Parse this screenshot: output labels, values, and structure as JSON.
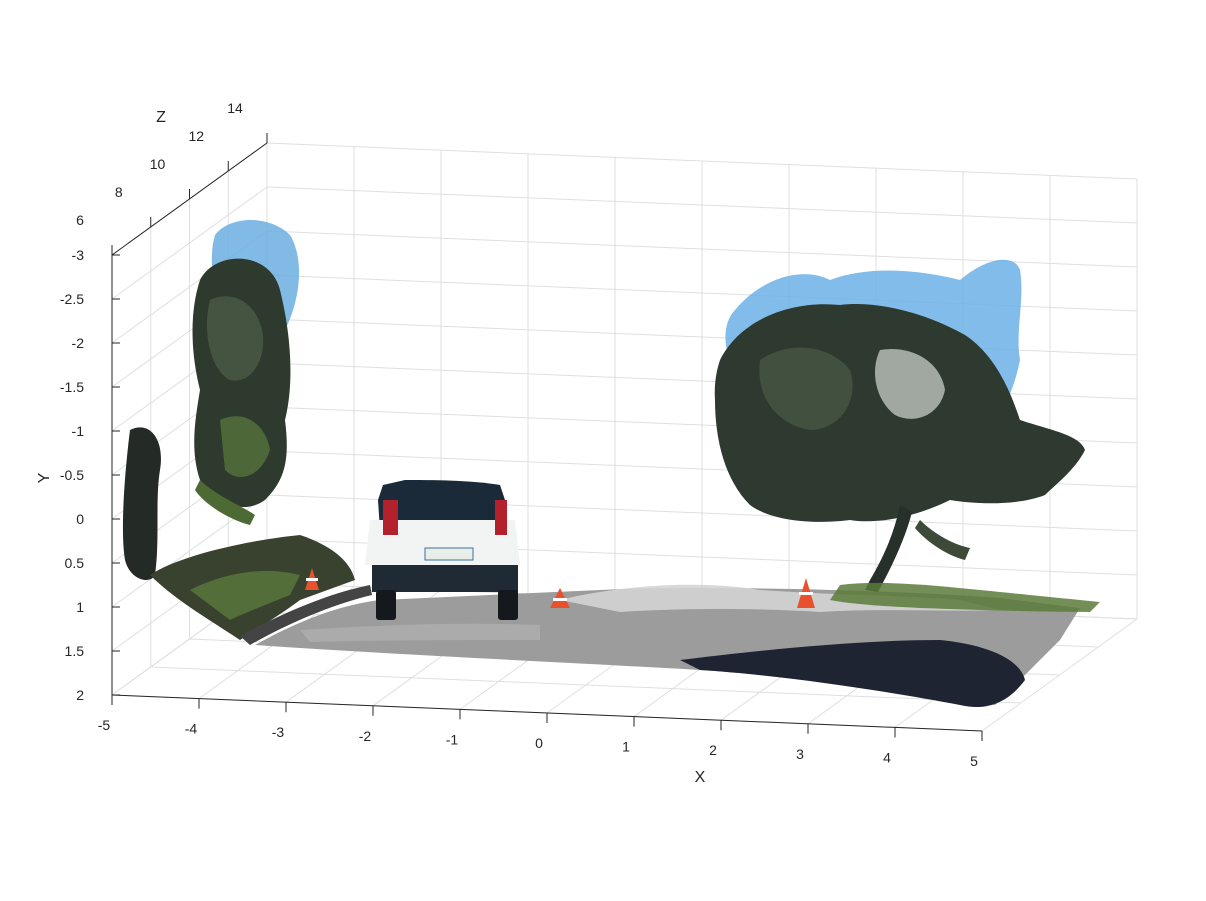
{
  "chart_data": {
    "type": "scatter3d",
    "title": "",
    "xlabel": "X",
    "ylabel": "Y",
    "zlabel": "Z",
    "xlim": [
      -5,
      5
    ],
    "ylim": [
      -3,
      2
    ],
    "zlim": [
      6,
      14
    ],
    "y_reversed": true,
    "x_ticks": [
      "-5",
      "-4",
      "-3",
      "-2",
      "-1",
      "0",
      "1",
      "2",
      "3",
      "4",
      "5"
    ],
    "y_ticks": [
      "-3",
      "-2.5",
      "-2",
      "-1.5",
      "-1",
      "-0.5",
      "0",
      "0.5",
      "1",
      "1.5",
      "2"
    ],
    "z_ticks": [
      "6",
      "8",
      "10",
      "12",
      "14"
    ],
    "grid": true,
    "content": "colored point cloud",
    "objects": [
      {
        "name": "left-tree",
        "colors": [
          "#2e3a2a",
          "#4f6b3a",
          "#3a8fd6"
        ]
      },
      {
        "name": "right-tree",
        "colors": [
          "#2f3a2c",
          "#556b45",
          "#2b8fd8"
        ]
      },
      {
        "name": "car",
        "colors": [
          "#f4f6f6",
          "#1f2a33",
          "#c0262c"
        ]
      },
      {
        "name": "road",
        "colors": [
          "#9a9a9a",
          "#b8b8b8",
          "#1d2230"
        ]
      },
      {
        "name": "traffic-cones",
        "colors": [
          "#e8512c",
          "#ffffff"
        ]
      },
      {
        "name": "grass-verge",
        "colors": [
          "#5d7a3c",
          "#2e3a27"
        ]
      }
    ]
  }
}
